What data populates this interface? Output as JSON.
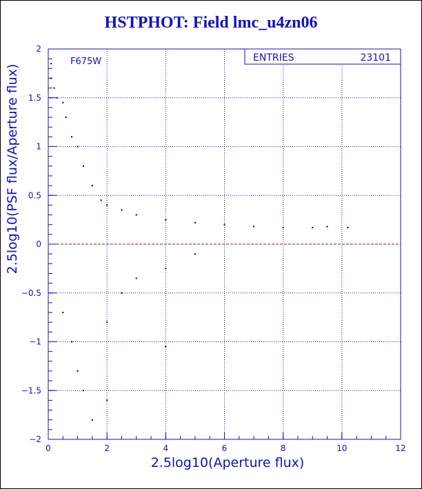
{
  "chart_data": {
    "type": "scatter",
    "title": "HSTPHOT: Field lmc_u4zn06",
    "xlabel": "2.5log10(Aperture flux)",
    "ylabel": "2.5log10(PSF flux/Aperture flux)",
    "xlim": [
      0,
      12
    ],
    "ylim": [
      -2,
      2
    ],
    "x_ticks": [
      "0",
      "2",
      "4",
      "6",
      "8",
      "10",
      "12"
    ],
    "y_ticks": [
      "-2",
      "-1.5",
      "-1",
      "-0.5",
      "0",
      "0.5",
      "1",
      "1.5",
      "2"
    ],
    "grid": true,
    "reference_line": {
      "y": 0,
      "color": "#cc0000",
      "style": "dashed"
    },
    "filter_label": "F675W",
    "stats": {
      "label": "ENTRIES",
      "value": "23101"
    },
    "series": [
      {
        "points_sample": [
          [
            0.1,
            1.85
          ],
          [
            0.1,
            1.7
          ],
          [
            0.2,
            1.6
          ],
          [
            0.3,
            1.5
          ],
          [
            0.5,
            1.45
          ],
          [
            0.6,
            1.3
          ],
          [
            0.8,
            1.1
          ],
          [
            1.0,
            1.0
          ],
          [
            1.2,
            0.8
          ],
          [
            1.5,
            0.6
          ],
          [
            1.8,
            0.45
          ],
          [
            2.0,
            0.4
          ],
          [
            2.5,
            0.35
          ],
          [
            3.0,
            0.3
          ],
          [
            4.0,
            0.25
          ],
          [
            5.0,
            0.22
          ],
          [
            6.0,
            0.2
          ],
          [
            7.0,
            0.18
          ],
          [
            8.0,
            0.17
          ],
          [
            9.0,
            0.17
          ],
          [
            9.5,
            0.18
          ],
          [
            10.2,
            0.17
          ],
          [
            0.5,
            -0.7
          ],
          [
            0.8,
            -1.0
          ],
          [
            1.0,
            -1.3
          ],
          [
            1.2,
            -1.5
          ],
          [
            1.5,
            -1.8
          ],
          [
            2.0,
            -1.6
          ],
          [
            2.0,
            -0.8
          ],
          [
            2.5,
            -0.5
          ],
          [
            3.0,
            -0.35
          ],
          [
            4.0,
            -0.25
          ],
          [
            4.0,
            -1.05
          ],
          [
            5.0,
            -0.1
          ]
        ]
      }
    ]
  }
}
